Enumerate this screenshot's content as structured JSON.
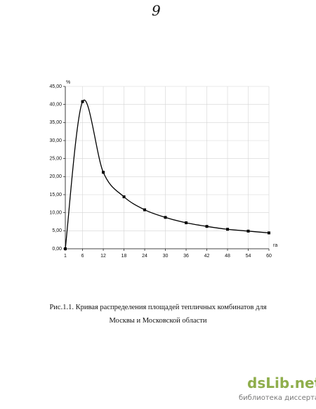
{
  "page_number": "9",
  "chart_data": {
    "type": "line",
    "y_label": "%",
    "x_label": "га",
    "x": [
      1,
      6,
      12,
      18,
      24,
      30,
      36,
      42,
      48,
      54,
      60
    ],
    "values": [
      0,
      40.8,
      21.2,
      14.4,
      10.8,
      8.7,
      7.2,
      6.2,
      5.4,
      4.9,
      4.4
    ],
    "color": "#000000",
    "xlim": [
      1,
      60
    ],
    "xticks": [
      1,
      6,
      12,
      18,
      24,
      30,
      36,
      42,
      48,
      54,
      60
    ],
    "ylim": [
      0,
      45
    ],
    "yticks": [
      {
        "value": 0,
        "label": "0,00"
      },
      {
        "value": 5,
        "label": "5,00"
      },
      {
        "value": 10,
        "label": "10,00"
      },
      {
        "value": 15,
        "label": "15,00"
      },
      {
        "value": 20,
        "label": "20,00"
      },
      {
        "value": 25,
        "label": "25,00"
      },
      {
        "value": 30,
        "label": "30,00"
      },
      {
        "value": 35,
        "label": "35,00"
      },
      {
        "value": 40,
        "label": "40,00"
      },
      {
        "value": 45,
        "label": "45,00"
      }
    ],
    "grid": true
  },
  "caption": [
    "Рис.1.1. Кривая распределения площадей  тепличных комбинатов для",
    "Москвы и Московской области"
  ],
  "watermark": {
    "brand": "dsLib.net",
    "tagline": "библиотека диссертаций"
  }
}
